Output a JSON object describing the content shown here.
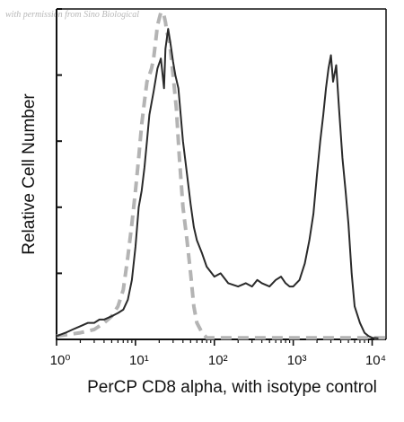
{
  "watermark": "with permission from Sino Biological",
  "chart_data": {
    "type": "line",
    "title": "",
    "xlabel": "PerCP CD8 alpha, with isotype control",
    "ylabel": "Relative Cell Number",
    "x_scale": "log",
    "xlim": [
      1,
      15000
    ],
    "ylim": [
      0,
      100
    ],
    "x_ticks": [
      {
        "value": 1,
        "label": "10⁰"
      },
      {
        "value": 10,
        "label": "10¹"
      },
      {
        "value": 100,
        "label": "10²"
      },
      {
        "value": 1000,
        "label": "10³"
      },
      {
        "value": 10000,
        "label": "10⁴"
      }
    ],
    "grid": false,
    "legend": "none",
    "series": [
      {
        "color": "#2a2a2a",
        "style": "solid",
        "points": [
          [
            1,
            1
          ],
          [
            1.3,
            2
          ],
          [
            1.6,
            3
          ],
          [
            2,
            4
          ],
          [
            2.5,
            5
          ],
          [
            3,
            5
          ],
          [
            3.5,
            6
          ],
          [
            4,
            6
          ],
          [
            5,
            7
          ],
          [
            6,
            8
          ],
          [
            7,
            9
          ],
          [
            8,
            12
          ],
          [
            9,
            18
          ],
          [
            10,
            28
          ],
          [
            11,
            40
          ],
          [
            12,
            45
          ],
          [
            13,
            52
          ],
          [
            14,
            60
          ],
          [
            15,
            68
          ],
          [
            17,
            75
          ],
          [
            19,
            82
          ],
          [
            21,
            85
          ],
          [
            23,
            76
          ],
          [
            24,
            88
          ],
          [
            26,
            94
          ],
          [
            28,
            89
          ],
          [
            30,
            84
          ],
          [
            32,
            80
          ],
          [
            35,
            76
          ],
          [
            40,
            60
          ],
          [
            45,
            50
          ],
          [
            50,
            41
          ],
          [
            55,
            34
          ],
          [
            60,
            30
          ],
          [
            70,
            26
          ],
          [
            80,
            22
          ],
          [
            100,
            19
          ],
          [
            120,
            20
          ],
          [
            150,
            17
          ],
          [
            200,
            16
          ],
          [
            250,
            17
          ],
          [
            300,
            16
          ],
          [
            350,
            18
          ],
          [
            400,
            17
          ],
          [
            500,
            16
          ],
          [
            600,
            18
          ],
          [
            700,
            19
          ],
          [
            800,
            17
          ],
          [
            900,
            16
          ],
          [
            1000,
            16
          ],
          [
            1200,
            18
          ],
          [
            1400,
            23
          ],
          [
            1600,
            30
          ],
          [
            1800,
            38
          ],
          [
            2000,
            50
          ],
          [
            2200,
            60
          ],
          [
            2400,
            68
          ],
          [
            2600,
            76
          ],
          [
            2800,
            82
          ],
          [
            3000,
            86
          ],
          [
            3200,
            78
          ],
          [
            3500,
            83
          ],
          [
            3800,
            70
          ],
          [
            4200,
            55
          ],
          [
            4600,
            45
          ],
          [
            5000,
            35
          ],
          [
            5500,
            20
          ],
          [
            6000,
            10
          ],
          [
            7000,
            5
          ],
          [
            8000,
            2
          ],
          [
            9000,
            1
          ],
          [
            10000,
            0.5
          ],
          [
            12000,
            0.3
          ]
        ]
      },
      {
        "color": "#b4b4b4",
        "style": "dashed",
        "points": [
          [
            1,
            1
          ],
          [
            2,
            2
          ],
          [
            3,
            3
          ],
          [
            4,
            5
          ],
          [
            5,
            7
          ],
          [
            6,
            10
          ],
          [
            7,
            15
          ],
          [
            8,
            25
          ],
          [
            9,
            35
          ],
          [
            10,
            45
          ],
          [
            11,
            55
          ],
          [
            12,
            65
          ],
          [
            13,
            72
          ],
          [
            14,
            78
          ],
          [
            15,
            80
          ],
          [
            16,
            82
          ],
          [
            17,
            85
          ],
          [
            18,
            90
          ],
          [
            19,
            95
          ],
          [
            20,
            97
          ],
          [
            21,
            99
          ],
          [
            22,
            99
          ],
          [
            23,
            98
          ],
          [
            24,
            96
          ],
          [
            25,
            93
          ],
          [
            27,
            90
          ],
          [
            30,
            80
          ],
          [
            33,
            70
          ],
          [
            36,
            55
          ],
          [
            40,
            40
          ],
          [
            45,
            30
          ],
          [
            50,
            20
          ],
          [
            55,
            10
          ],
          [
            60,
            5
          ],
          [
            70,
            2
          ],
          [
            80,
            0.5
          ],
          [
            100,
            0.5
          ],
          [
            200,
            0.5
          ],
          [
            1000,
            0.5
          ],
          [
            10000,
            0.5
          ],
          [
            15000,
            0.5
          ]
        ]
      }
    ]
  }
}
